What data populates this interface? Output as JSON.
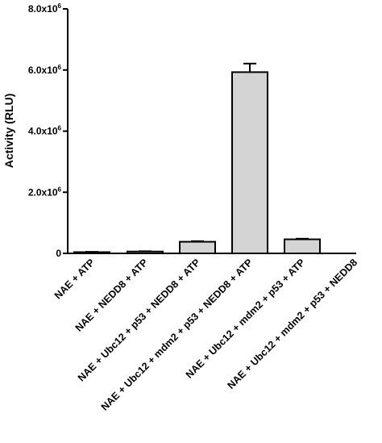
{
  "chart_data": {
    "type": "bar",
    "ylabel": "Activity (RLU)",
    "xlabel": "",
    "ylim": [
      0,
      8000000
    ],
    "yticks": [
      {
        "value": 0,
        "label": "0"
      },
      {
        "value": 2000000,
        "label": "2.0x10",
        "exp": "6"
      },
      {
        "value": 4000000,
        "label": "4.0x10",
        "exp": "6"
      },
      {
        "value": 6000000,
        "label": "6.0x10",
        "exp": "6"
      },
      {
        "value": 8000000,
        "label": "8.0x10",
        "exp": "6"
      }
    ],
    "categories": [
      "NAE + ATP",
      "NAE + NEDD8 + ATP",
      "NAE + Ubc12 + p53 + NEDD8 + ATP",
      "NAE + Ubc12 + mdm2 + p53 + NEDD8 + ATP",
      "NAE + Ubc12 + mdm2 + p53 + ATP",
      "NAE + Ubc12 + mdm2 + p53 + NEDD8"
    ],
    "values": [
      40000,
      60000,
      380000,
      5930000,
      460000,
      0
    ],
    "errors": [
      10000,
      10000,
      20000,
      280000,
      20000,
      0
    ],
    "bar_color": "#d4d4d4",
    "grid": false,
    "legend": "none"
  }
}
